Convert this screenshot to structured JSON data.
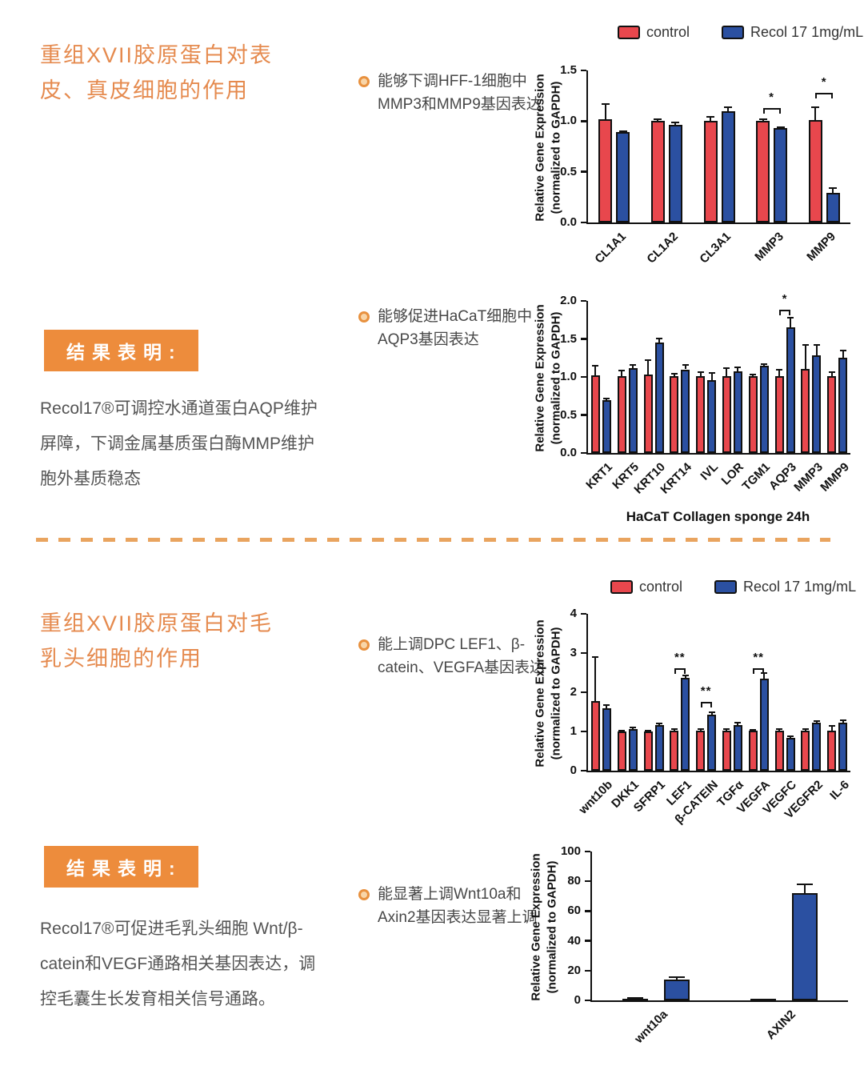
{
  "colors": {
    "title_orange": "#E58A4E",
    "box_orange": "#ED8C3C",
    "divider_orange": "#E9A45F",
    "control_red": "#E8474D",
    "recol_blue": "#2B50A1",
    "chart4_control_black": "#1a1a1a"
  },
  "sections": [
    {
      "title": "重组XVII胶原蛋白对表皮、真皮细胞的作用",
      "bullets": [
        "能够下调HFF-1细胞中MMP3和MMP9基因表达",
        "能够促进HaCaT细胞中AQP3基因表达"
      ],
      "result_label": "结果表明:",
      "result_text": "Recol17®可调控水通道蛋白AQP维护屏障，下调金属基质蛋白酶MMP维护胞外基质稳态"
    },
    {
      "title": "重组XVII胶原蛋白对毛乳头细胞的作用",
      "bullets": [
        "能上调DPC LEF1、β-catein、VEGFA基因表达",
        "能显著上调Wnt10a和Axin2基因表达显著上调"
      ],
      "result_label": "结果表明:",
      "result_text": "Recol17®可促进毛乳头细胞 Wnt/β-catein和VEGF通路相关基因表达，调控毛囊生长发育相关信号通路。"
    }
  ],
  "legend": {
    "items": [
      {
        "label": "control",
        "color": "#E8474D"
      },
      {
        "label": "Recol 17 1mg/mL",
        "color": "#2B50A1"
      }
    ]
  },
  "chart_data": [
    {
      "type": "bar",
      "title": "",
      "ylabel": [
        "Relative Gene Expression",
        "(normalized to GAPDH)"
      ],
      "xlabel": "",
      "ylim": [
        0,
        1.5
      ],
      "yticks": [
        0,
        0.5,
        1,
        1.5
      ],
      "ytick_labels": [
        "0.0",
        "0.5",
        "1.0",
        "1.5"
      ],
      "categories": [
        "CL1A1",
        "CL1A2",
        "CL3A1",
        "MMP3",
        "MMP9"
      ],
      "series": [
        {
          "name": "control",
          "color": "#E8474D",
          "values": [
            1.02,
            1.0,
            1.0,
            1.0,
            1.01
          ],
          "errors": [
            0.15,
            0.02,
            0.04,
            0.02,
            0.13
          ]
        },
        {
          "name": "Recol 17 1mg/mL",
          "color": "#2B50A1",
          "values": [
            0.89,
            0.96,
            1.1,
            0.93,
            0.29
          ],
          "errors": [
            0.01,
            0.03,
            0.04,
            0.01,
            0.05
          ]
        }
      ],
      "sig": [
        {
          "index": 3,
          "label": "*",
          "y": 1.13
        },
        {
          "index": 4,
          "label": "*",
          "y": 1.28
        }
      ]
    },
    {
      "type": "bar",
      "title": "",
      "ylabel": [
        "Relative Gene Expression",
        "(normalized to GAPDH)"
      ],
      "xlabel": "HaCaT  Collagen sponge 24h",
      "ylim": [
        0,
        2.0
      ],
      "yticks": [
        0,
        0.5,
        1,
        1.5,
        2
      ],
      "ytick_labels": [
        "0.0",
        "0.5",
        "1.0",
        "1.5",
        "2.0"
      ],
      "categories": [
        "KRT1",
        "KRT5",
        "KRT10",
        "KRT14",
        "IVL",
        "LOR",
        "TGM1",
        "AQP3",
        "MMP3",
        "MMP9"
      ],
      "series": [
        {
          "name": "control",
          "color": "#E8474D",
          "values": [
            1.02,
            1.01,
            1.03,
            1.01,
            1.01,
            1.01,
            1.01,
            1.01,
            1.11,
            1.01
          ],
          "errors": [
            0.13,
            0.07,
            0.19,
            0.03,
            0.05,
            0.11,
            0.02,
            0.08,
            0.31,
            0.05
          ]
        },
        {
          "name": "Recol 17 1mg/mL",
          "color": "#2B50A1",
          "values": [
            0.69,
            1.12,
            1.45,
            1.1,
            0.96,
            1.07,
            1.15,
            1.65,
            1.28,
            1.25
          ],
          "errors": [
            0.03,
            0.04,
            0.06,
            0.06,
            0.09,
            0.06,
            0.02,
            0.13,
            0.14,
            0.1
          ]
        }
      ],
      "sig": [
        {
          "index": 7,
          "label": "*",
          "y": 1.88
        }
      ]
    },
    {
      "type": "bar",
      "title": "",
      "ylabel": [
        "Relative Gene Expression",
        "(normalized to GAPDH)"
      ],
      "xlabel": "",
      "ylim": [
        0,
        4
      ],
      "yticks": [
        0,
        1,
        2,
        3,
        4
      ],
      "ytick_labels": [
        "0",
        "1",
        "2",
        "3",
        "4"
      ],
      "categories": [
        "wnt10b",
        "DKK1",
        "SFRP1",
        "LEF1",
        "β-CATEIN",
        "TGFα",
        "VEGFA",
        "VEGFC",
        "VEGFR2",
        "IL-6"
      ],
      "series": [
        {
          "name": "control",
          "color": "#E8474D",
          "values": [
            1.78,
            1.0,
            1.0,
            1.02,
            1.02,
            1.02,
            1.02,
            1.02,
            1.02,
            1.02
          ],
          "errors": [
            1.12,
            0.03,
            0.02,
            0.04,
            0.04,
            0.04,
            0.03,
            0.04,
            0.05,
            0.12
          ]
        },
        {
          "name": "Recol 17 1mg/mL",
          "color": "#2B50A1",
          "values": [
            1.6,
            1.07,
            1.17,
            2.37,
            1.43,
            1.17,
            2.35,
            0.83,
            1.22,
            1.23
          ],
          "errors": [
            0.08,
            0.04,
            0.03,
            0.05,
            0.05,
            0.06,
            0.14,
            0.05,
            0.04,
            0.05
          ]
        }
      ],
      "sig": [
        {
          "index": 3,
          "label": "**",
          "y": 2.62
        },
        {
          "index": 4,
          "label": "**",
          "y": 1.75
        },
        {
          "index": 6,
          "label": "**",
          "y": 2.62
        }
      ]
    },
    {
      "type": "bar",
      "title": "",
      "ylabel": [
        "Relative Gene Expression",
        "(normalized to GAPDH)"
      ],
      "xlabel": "",
      "ylim": [
        0,
        100
      ],
      "yticks": [
        0,
        20,
        40,
        60,
        80,
        100
      ],
      "ytick_labels": [
        "0",
        "20",
        "40",
        "60",
        "80",
        "100"
      ],
      "categories": [
        "wnt10a",
        "AXIN2"
      ],
      "series": [
        {
          "name": "control",
          "color": "#1a1a1a",
          "values": [
            1,
            1
          ],
          "errors": [
            0.5,
            0
          ]
        },
        {
          "name": "Recol 17 1mg/mL",
          "color": "#2B50A1",
          "values": [
            14,
            72
          ],
          "errors": [
            1.5,
            6
          ]
        }
      ],
      "sig": []
    }
  ]
}
